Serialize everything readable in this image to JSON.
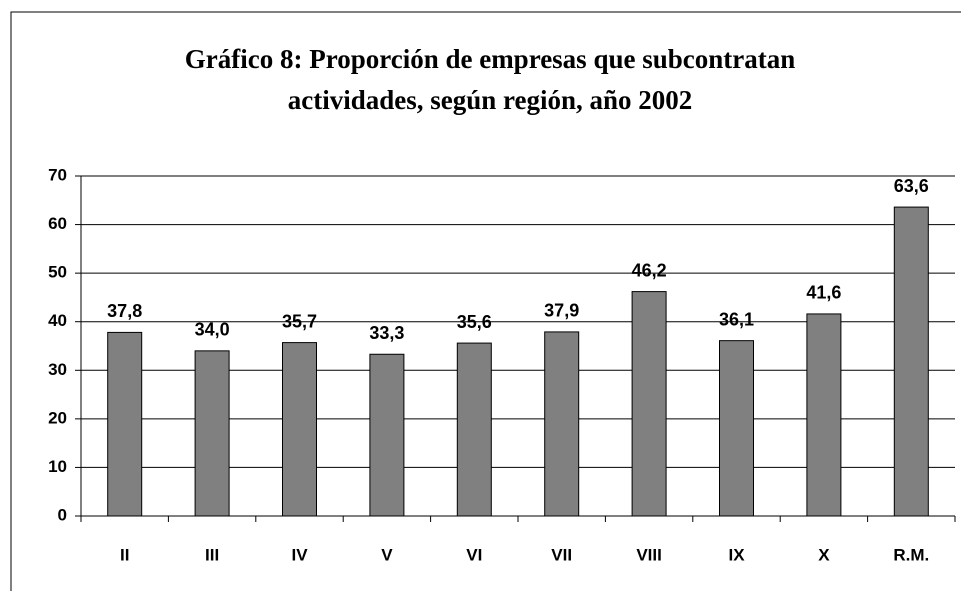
{
  "chart_data": {
    "type": "bar",
    "title": [
      "Gráfico 8: Proporción de empresas que subcontratan",
      "actividades, según región, año 2002"
    ],
    "categories": [
      "II",
      "III",
      "IV",
      "V",
      "VI",
      "VII",
      "VIII",
      "IX",
      "X",
      "R.M."
    ],
    "values": [
      37.8,
      34.0,
      35.7,
      33.3,
      35.6,
      37.9,
      46.2,
      36.1,
      41.6,
      63.6
    ],
    "value_labels": [
      "37,8",
      "34,0",
      "35,7",
      "33,3",
      "35,6",
      "37,9",
      "46,2",
      "36,1",
      "41,6",
      "63,6"
    ],
    "color": "#808080",
    "ylim": [
      0,
      70
    ],
    "yticks": [
      0,
      10,
      20,
      30,
      40,
      50,
      60,
      70
    ],
    "grid": true
  }
}
